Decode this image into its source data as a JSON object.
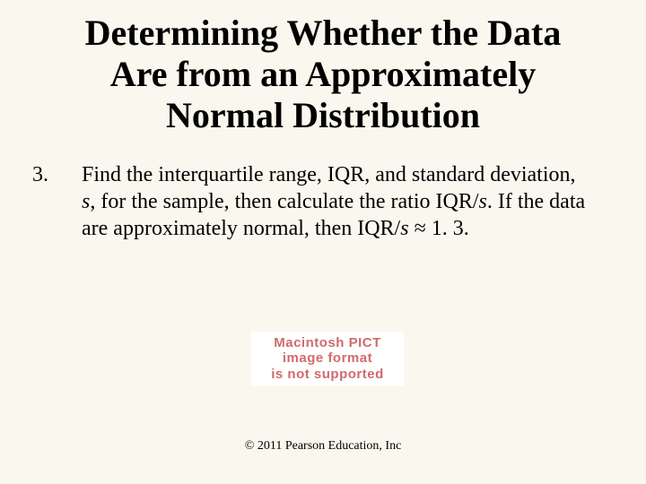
{
  "slide": {
    "background_color": "#faf8ee",
    "text_color": "#000000",
    "font_family": "Times New Roman"
  },
  "title": {
    "lines": [
      "Determining Whether the Data",
      "Are from an Approximately",
      "Normal Distribution"
    ],
    "font_size": 40,
    "font_weight": "bold"
  },
  "body": {
    "list_number": "3.",
    "segments": {
      "s1": "Find the interquartile range, IQR, and standard deviation, ",
      "s2": "s",
      "s3": ", for the sample, then calculate the ratio IQR/",
      "s4": "s",
      "s5": ". If the data are approximately normal, then IQR/",
      "s6": "s",
      "s7": " ≈ 1. 3."
    },
    "font_size": 24
  },
  "placeholder": {
    "line1": "Macintosh PICT",
    "line2": "image format",
    "line3": "is not supported",
    "text_color": "#d06b6b",
    "background_color": "#ffffff"
  },
  "footer": {
    "text": "© 2011 Pearson Education, Inc",
    "font_size": 14
  }
}
